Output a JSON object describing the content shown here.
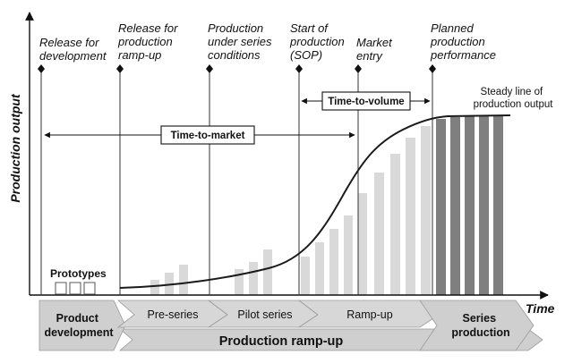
{
  "axes": {
    "y_label": "Production output",
    "x_label": "Time"
  },
  "milestones": [
    {
      "lines": [
        "Release for",
        "development"
      ]
    },
    {
      "lines": [
        "Release for",
        "production",
        "ramp-up"
      ]
    },
    {
      "lines": [
        "Production",
        "under series",
        "conditions"
      ]
    },
    {
      "lines": [
        "Start of",
        "production",
        "(SOP)"
      ]
    },
    {
      "lines": [
        "Market",
        "entry"
      ]
    },
    {
      "lines": [
        "Planned",
        "production",
        "performance"
      ]
    }
  ],
  "spans": {
    "time_to_market": "Time-to-market",
    "time_to_volume": "Time-to-volume"
  },
  "annotations": {
    "steady_line": [
      "Steady line of",
      "production output"
    ],
    "prototypes": "Prototypes"
  },
  "phases": [
    {
      "lines": [
        "Product",
        "development"
      ]
    },
    {
      "lines": [
        "Pre-series"
      ]
    },
    {
      "lines": [
        "Pilot series"
      ]
    },
    {
      "lines": [
        "Ramp-up"
      ]
    },
    {
      "lines": [
        "Series",
        "production"
      ]
    }
  ],
  "band_label": "Production ramp-up",
  "colors": {
    "bar_light": "#d9d9d9",
    "bar_dark": "#7f7f7f",
    "phase_fill": "#d4d4d4",
    "phase_dark": "#bdbdbd",
    "curve": "#1a1a1a"
  }
}
